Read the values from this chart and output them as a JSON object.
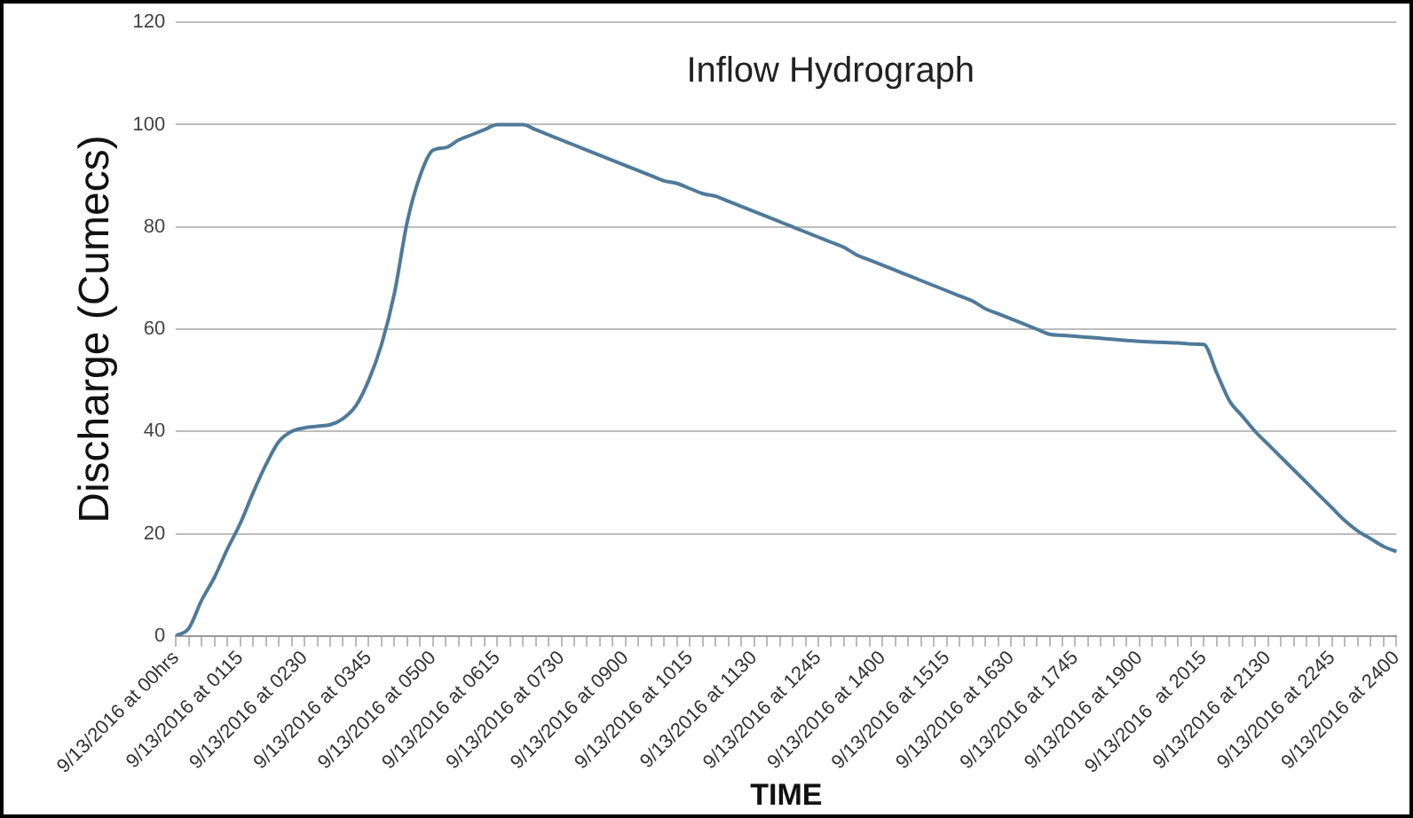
{
  "chart_data": {
    "type": "line",
    "title": "Inflow Hydrograph",
    "xlabel": "TIME",
    "ylabel": "Discharge (Cumecs)",
    "categories": [
      "9/13/2016 at 00hrs",
      null,
      null,
      null,
      null,
      "9/13/2016 at 0115",
      null,
      null,
      null,
      null,
      "9/13/2016 at 0230",
      null,
      null,
      null,
      null,
      "9/13/2016 at 0345",
      null,
      null,
      null,
      null,
      "9/13/2016 at 0500",
      null,
      null,
      null,
      null,
      "9/13/2016 at 0615",
      null,
      null,
      null,
      null,
      "9/13/2016 at 0730",
      null,
      null,
      null,
      null,
      "9/13/2016 at 0900",
      null,
      null,
      null,
      null,
      "9/13/2016 at 1015",
      null,
      null,
      null,
      null,
      "9/13/2016 at 1130",
      null,
      null,
      null,
      null,
      "9/13/2016 at 1245",
      null,
      null,
      null,
      null,
      "9/13/2016 at 1400",
      null,
      null,
      null,
      null,
      "9/13/2016 at 1515",
      null,
      null,
      null,
      null,
      "9/13/2016 at 1630",
      null,
      null,
      null,
      null,
      "9/13/2016 at 1745",
      null,
      null,
      null,
      null,
      "9/13/2016 at 1900",
      null,
      null,
      null,
      null,
      "9/13/2016  at 2015",
      null,
      null,
      null,
      null,
      "9/13/2016 at 2130",
      null,
      null,
      null,
      null,
      "9/13/2016 at 2245",
      null,
      null,
      null,
      null,
      "9/13/2016 at 2400"
    ],
    "series": [
      {
        "color": "#4f7a9a",
        "values": [
          0,
          1.5,
          7,
          11.5,
          17,
          22,
          28,
          33.5,
          38,
          40,
          40.7,
          41,
          41.3,
          42.5,
          45,
          50,
          57,
          67,
          81,
          90,
          95,
          95.5,
          97,
          98,
          99,
          100,
          100,
          100,
          99,
          98,
          97,
          96,
          95,
          94,
          93,
          92,
          91,
          90,
          89,
          88.5,
          87.5,
          86.5,
          86,
          85,
          84,
          83,
          82,
          81,
          80,
          79,
          78,
          77,
          76,
          74.5,
          73.5,
          72.5,
          71.5,
          70.5,
          69.5,
          68.5,
          67.5,
          66.5,
          65.5,
          64,
          63,
          62,
          61,
          60,
          59,
          58.8,
          58.6,
          58.4,
          58.2,
          58,
          57.8,
          57.6,
          57.5,
          57.4,
          57.3,
          57.1,
          57,
          51.5,
          46,
          43,
          40,
          37.5,
          35,
          32.5,
          30,
          27.5,
          25,
          22.5,
          20.5,
          19,
          17.5,
          16.5
        ]
      }
    ],
    "ylim": [
      0,
      120
    ],
    "yticks": [
      0,
      20,
      40,
      60,
      80,
      100,
      120
    ],
    "grid": "y",
    "legend": false,
    "marker": "none",
    "line_style": "solid"
  }
}
